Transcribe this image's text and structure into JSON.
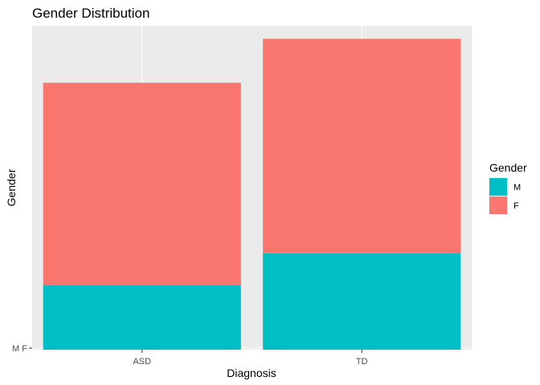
{
  "chart_data": {
    "type": "bar",
    "stacked": true,
    "title": "Gender Distribution",
    "xlabel": "Diagnosis",
    "ylabel": "Gender",
    "categories": [
      "ASD",
      "TD"
    ],
    "series": [
      {
        "name": "M",
        "color": "#00BFC4",
        "values": [
          84,
          125
        ]
      },
      {
        "name": "F",
        "color": "#F8766D",
        "values": [
          262,
          278
        ]
      }
    ],
    "y_tick_labels": [
      "M F"
    ],
    "ylim": [
      0,
      420
    ],
    "grid": true,
    "legend": {
      "title": "Gender",
      "position": "right",
      "entries": [
        "M",
        "F"
      ]
    }
  }
}
